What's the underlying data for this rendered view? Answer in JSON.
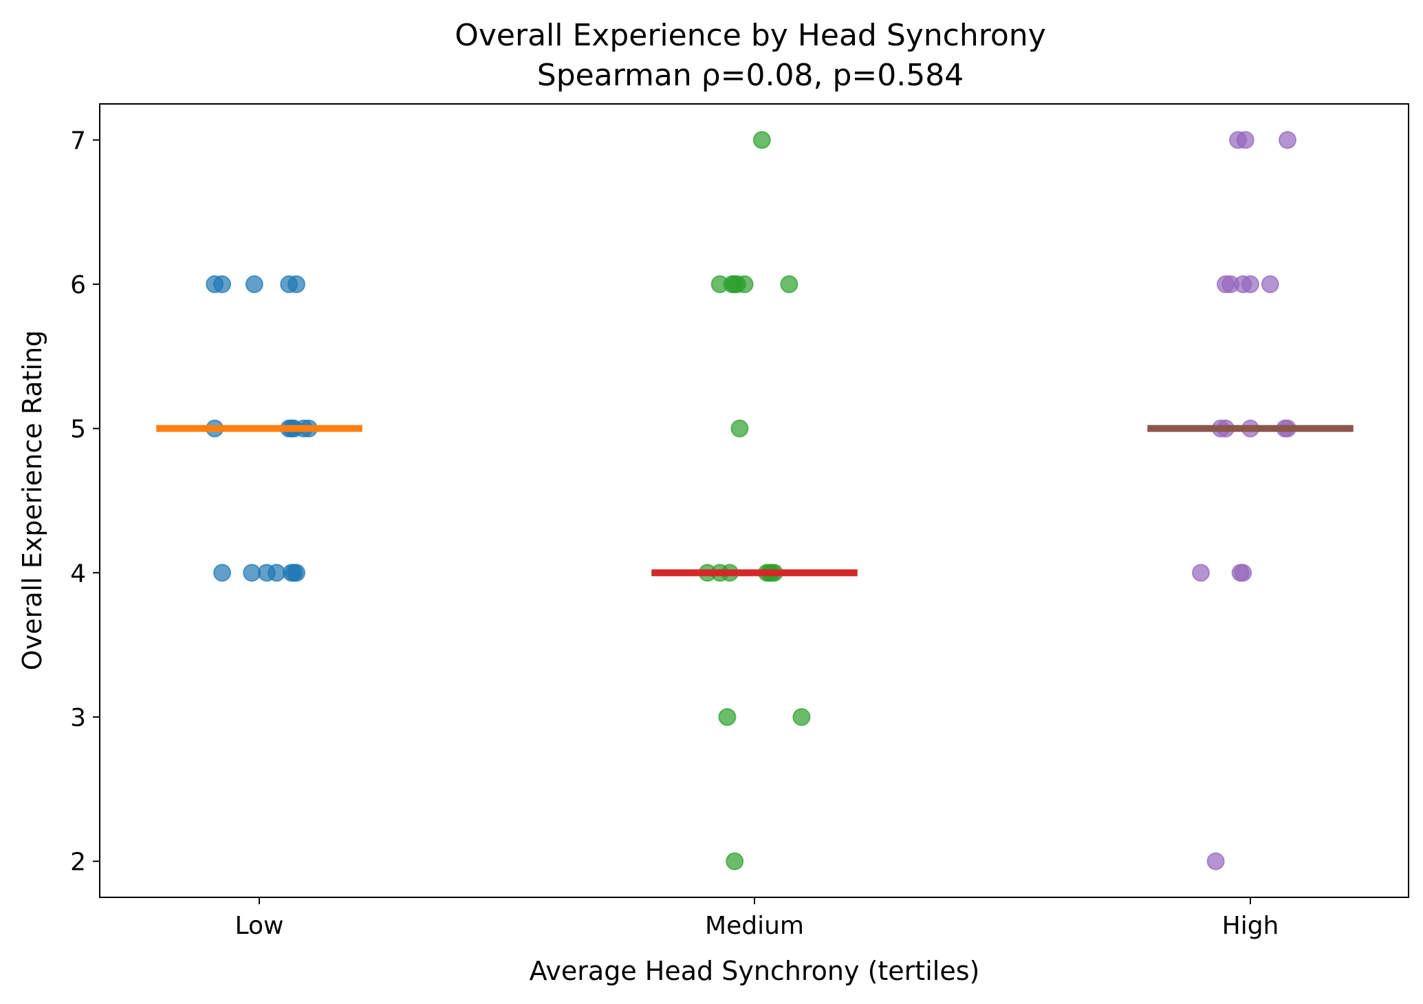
{
  "chart_data": {
    "type": "scatter",
    "title": "Overall Experience by Head Synchrony",
    "subtitle": "Spearman ρ=0.08, p=0.584",
    "xlabel": "Average Head Synchrony (tertiles)",
    "ylabel": "Overall Experience Rating",
    "categories": [
      "Low",
      "Medium",
      "High"
    ],
    "yticks": [
      "2",
      "3",
      "4",
      "5",
      "6",
      "7"
    ],
    "ylim": [
      1.75,
      7.25
    ],
    "grid": false,
    "legend": "none",
    "series": [
      {
        "category": "Low",
        "color": "#1f77b4",
        "points": [
          {
            "x": -0.09,
            "y": 6
          },
          {
            "x": -0.075,
            "y": 6
          },
          {
            "x": -0.01,
            "y": 6
          },
          {
            "x": 0.06,
            "y": 6
          },
          {
            "x": 0.075,
            "y": 6
          },
          {
            "x": -0.09,
            "y": 5
          },
          {
            "x": 0.06,
            "y": 5
          },
          {
            "x": 0.065,
            "y": 5
          },
          {
            "x": 0.07,
            "y": 5
          },
          {
            "x": 0.09,
            "y": 5
          },
          {
            "x": 0.1,
            "y": 5
          },
          {
            "x": -0.075,
            "y": 4
          },
          {
            "x": -0.015,
            "y": 4
          },
          {
            "x": 0.015,
            "y": 4
          },
          {
            "x": 0.035,
            "y": 4
          },
          {
            "x": 0.065,
            "y": 4
          },
          {
            "x": 0.07,
            "y": 4
          },
          {
            "x": 0.075,
            "y": 4
          }
        ],
        "median": 5,
        "median_color": "#ff7f0e"
      },
      {
        "category": "Medium",
        "color": "#2ca02c",
        "points": [
          {
            "x": 0.015,
            "y": 7
          },
          {
            "x": -0.07,
            "y": 6
          },
          {
            "x": -0.045,
            "y": 6
          },
          {
            "x": -0.04,
            "y": 6
          },
          {
            "x": -0.035,
            "y": 6
          },
          {
            "x": -0.02,
            "y": 6
          },
          {
            "x": 0.07,
            "y": 6
          },
          {
            "x": -0.03,
            "y": 5
          },
          {
            "x": -0.095,
            "y": 4
          },
          {
            "x": -0.07,
            "y": 4
          },
          {
            "x": -0.05,
            "y": 4
          },
          {
            "x": 0.025,
            "y": 4
          },
          {
            "x": 0.03,
            "y": 4
          },
          {
            "x": 0.035,
            "y": 4
          },
          {
            "x": 0.04,
            "y": 4
          },
          {
            "x": -0.055,
            "y": 3
          },
          {
            "x": 0.095,
            "y": 3
          },
          {
            "x": -0.04,
            "y": 2
          }
        ],
        "median": 4,
        "median_color": "#d62728"
      },
      {
        "category": "High",
        "color": "#9467bd",
        "points": [
          {
            "x": -0.025,
            "y": 7
          },
          {
            "x": -0.01,
            "y": 7
          },
          {
            "x": 0.075,
            "y": 7
          },
          {
            "x": -0.05,
            "y": 6
          },
          {
            "x": -0.04,
            "y": 6
          },
          {
            "x": -0.015,
            "y": 6
          },
          {
            "x": 0.0,
            "y": 6
          },
          {
            "x": 0.04,
            "y": 6
          },
          {
            "x": -0.06,
            "y": 5
          },
          {
            "x": -0.05,
            "y": 5
          },
          {
            "x": 0.0,
            "y": 5
          },
          {
            "x": 0.07,
            "y": 5
          },
          {
            "x": 0.075,
            "y": 5
          },
          {
            "x": -0.1,
            "y": 4
          },
          {
            "x": -0.02,
            "y": 4
          },
          {
            "x": -0.015,
            "y": 4
          },
          {
            "x": -0.07,
            "y": 2
          }
        ],
        "median": 5,
        "median_color": "#8c564b"
      }
    ]
  }
}
